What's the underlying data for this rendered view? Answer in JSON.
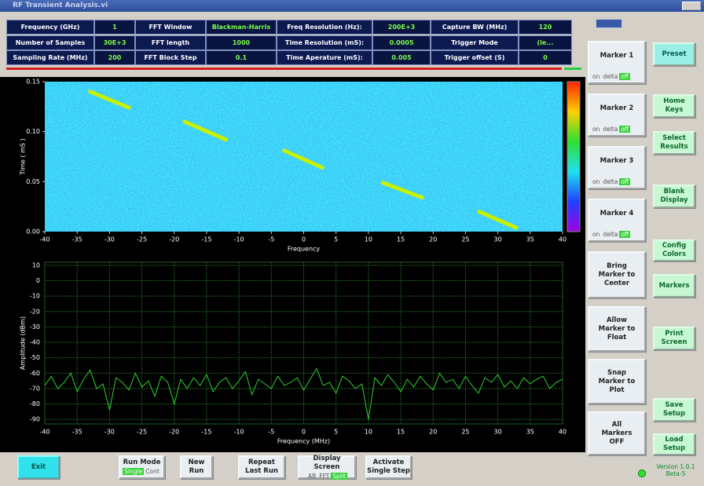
{
  "window": {
    "title": "RF Transient Analysis.vi"
  },
  "params": [
    [
      {
        "label": "Frequency (GHz)",
        "value": "1"
      },
      {
        "label": "FFT Window",
        "value": "Blackman-Harris"
      },
      {
        "label": "Freq Resolution (Hz):",
        "value": "200E+3"
      },
      {
        "label": "Capture BW (MHz)",
        "value": "120"
      }
    ],
    [
      {
        "label": "Number of Samples",
        "value": "30E+3"
      },
      {
        "label": "FFT length",
        "value": "1000"
      },
      {
        "label": "Time Resolution (mS):",
        "value": "0.0005"
      },
      {
        "label": "Trigger Mode",
        "value": "(le..."
      }
    ],
    [
      {
        "label": "Sampling Rate (MHz)",
        "value": "200"
      },
      {
        "label": "FFT Block Step",
        "value": "0.1"
      },
      {
        "label": "Time Aperature (mS):",
        "value": "0.005"
      },
      {
        "label": "Trigger offset (S)",
        "value": "0"
      }
    ]
  ],
  "chart_data": [
    {
      "type": "spectrogram",
      "xlabel": "Frequency",
      "ylabel": "Time ( mS )",
      "xlim": [
        -40,
        40
      ],
      "ylim": [
        0,
        0.15
      ],
      "xticks": [
        -40,
        -35,
        -30,
        -25,
        -20,
        -15,
        -10,
        -5,
        0,
        5,
        10,
        15,
        20,
        25,
        30,
        35,
        40
      ],
      "yticks": [
        {
          "value": 0,
          "label": "0.00"
        },
        {
          "value": 0.05,
          "label": "0.05"
        },
        {
          "value": 0.1,
          "label": "0.10"
        },
        {
          "value": 0.15,
          "label": "0.15"
        }
      ],
      "colorbar": true,
      "color": "#c8f000",
      "segments": [
        {
          "x": [
            -33,
            -27
          ],
          "y": [
            0.14,
            0.124
          ]
        },
        {
          "x": [
            -18.4,
            -12
          ],
          "y": [
            0.11,
            0.092
          ]
        },
        {
          "x": [
            -3,
            2.9
          ],
          "y": [
            0.081,
            0.064
          ]
        },
        {
          "x": [
            12.2,
            18.3
          ],
          "y": [
            0.049,
            0.034
          ]
        },
        {
          "x": [
            27.1,
            32.8
          ],
          "y": [
            0.02,
            0.004
          ]
        }
      ]
    },
    {
      "type": "line",
      "xlabel": "Frequency (MHz)",
      "ylabel": "Amplitude (dBm)",
      "xlim": [
        -40,
        40
      ],
      "ylim": [
        -93,
        12
      ],
      "xticks": [
        -40,
        -35,
        -30,
        -25,
        -20,
        -15,
        -10,
        -5,
        0,
        5,
        10,
        15,
        20,
        25,
        30,
        35,
        40
      ],
      "yticks": [
        10,
        0,
        -10,
        -20,
        -30,
        -40,
        -50,
        -60,
        -70,
        -80,
        -90
      ],
      "grid": true,
      "color": "#2fcf2f",
      "x": [
        -40,
        -39,
        -38,
        -37,
        -36,
        -35,
        -34,
        -33,
        -32,
        -31,
        -30,
        -29,
        -28,
        -27,
        -26,
        -25,
        -24,
        -23,
        -22,
        -21,
        -20,
        -19,
        -18,
        -17,
        -16,
        -15,
        -14,
        -13,
        -12,
        -11,
        -10,
        -9,
        -8,
        -7,
        -6,
        -5,
        -4,
        -3,
        -2,
        -1,
        0,
        1,
        2,
        3,
        4,
        5,
        6,
        7,
        8,
        9,
        10,
        11,
        12,
        13,
        14,
        15,
        16,
        17,
        18,
        19,
        20,
        21,
        22,
        23,
        24,
        25,
        26,
        27,
        28,
        29,
        30,
        31,
        32,
        33,
        34,
        35,
        36,
        37,
        38,
        39,
        40
      ],
      "values": [
        -68,
        -62,
        -70,
        -66,
        -60,
        -72,
        -64,
        -58,
        -70,
        -67,
        -84,
        -63,
        -66,
        -71,
        -60,
        -69,
        -65,
        -75,
        -62,
        -66,
        -80,
        -64,
        -70,
        -63,
        -68,
        -61,
        -72,
        -66,
        -63,
        -70,
        -65,
        -59,
        -74,
        -64,
        -67,
        -70,
        -62,
        -68,
        -66,
        -63,
        -71,
        -64,
        -57,
        -68,
        -66,
        -73,
        -62,
        -65,
        -70,
        -67,
        -90,
        -63,
        -68,
        -61,
        -66,
        -72,
        -64,
        -69,
        -62,
        -67,
        -71,
        -60,
        -66,
        -64,
        -70,
        -62,
        -68,
        -73,
        -63,
        -66,
        -61,
        -69,
        -65,
        -70,
        -63,
        -67,
        -64,
        -62,
        -70,
        -66,
        -64
      ]
    }
  ],
  "markers": [
    {
      "label": "Marker 1",
      "options": [
        "on",
        "delta",
        "off"
      ],
      "active_index": 2
    },
    {
      "label": "Marker 2",
      "options": [
        "on",
        "delta",
        "off"
      ],
      "active_index": 2
    },
    {
      "label": "Marker 3",
      "options": [
        "on",
        "delta",
        "off"
      ],
      "active_index": 2
    },
    {
      "label": "Marker 4",
      "options": [
        "on",
        "delta",
        "off"
      ],
      "active_index": 2
    }
  ],
  "marker_actions": [
    "Bring\nMarker to\nCenter",
    "Allow\nMarker to\nFloat",
    "Snap\nMarker to\nPlot",
    "All\nMarkers\nOFF"
  ],
  "side_buttons": [
    "Preset",
    "Home\nKeys",
    "Select\nResults",
    "Blank\nDisplay",
    "Config\nColors",
    "Markers",
    "Print\nScreen",
    "Save\nSetup",
    "Load\nSetup"
  ],
  "bottom_buttons": [
    {
      "label": "Exit"
    },
    {
      "label": "Run Mode",
      "options": [
        "Single",
        "Cont"
      ],
      "active_index": 0
    },
    {
      "label": "New\nRun"
    },
    {
      "label": "Repeat\nLast Run"
    },
    {
      "label": "Display Screen",
      "options": [
        "AB",
        "FFT",
        "Split"
      ],
      "active_index": 2
    },
    {
      "label": "Activate\nSingle Step"
    }
  ],
  "version": "Version 1.0.1\nBeta-5"
}
